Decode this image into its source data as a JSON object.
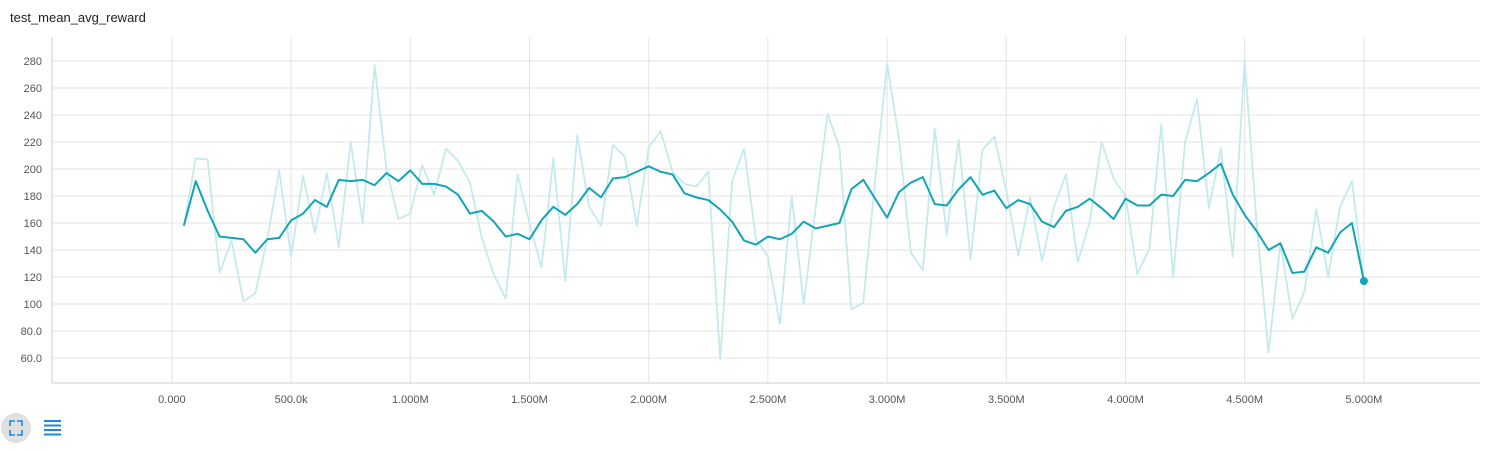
{
  "chart_data": {
    "type": "line",
    "title": "test_mean_avg_reward",
    "x": [
      50000,
      100000,
      150000,
      200000,
      250000,
      300000,
      350000,
      400000,
      450000,
      500000,
      550000,
      600000,
      650000,
      700000,
      750000,
      800000,
      850000,
      900000,
      950000,
      1000000,
      1050000,
      1100000,
      1150000,
      1200000,
      1250000,
      1300000,
      1350000,
      1400000,
      1450000,
      1500000,
      1550000,
      1600000,
      1650000,
      1700000,
      1750000,
      1800000,
      1850000,
      1900000,
      1950000,
      2000000,
      2050000,
      2100000,
      2150000,
      2200000,
      2250000,
      2300000,
      2350000,
      2400000,
      2450000,
      2500000,
      2550000,
      2600000,
      2650000,
      2700000,
      2750000,
      2800000,
      2850000,
      2900000,
      2950000,
      3000000,
      3050000,
      3100000,
      3150000,
      3200000,
      3250000,
      3300000,
      3350000,
      3400000,
      3450000,
      3500000,
      3550000,
      3600000,
      3650000,
      3700000,
      3750000,
      3800000,
      3850000,
      3900000,
      3950000,
      4000000,
      4050000,
      4100000,
      4150000,
      4200000,
      4250000,
      4300000,
      4350000,
      4400000,
      4450000,
      4500000,
      4550000,
      4600000,
      4650000,
      4700000,
      4750000,
      4800000,
      4850000,
      4900000,
      4950000,
      5000000
    ],
    "series": [
      {
        "color": "#c5eaee",
        "values": [
          158,
          208,
          207,
          123,
          147,
          102,
          108,
          148,
          199,
          135,
          195,
          153,
          197,
          142,
          220,
          160,
          277,
          200,
          163,
          167,
          203,
          181,
          215,
          206,
          190,
          149,
          122,
          104,
          196,
          160,
          127,
          208,
          117,
          225,
          172,
          158,
          218,
          209,
          158,
          216,
          228,
          198,
          189,
          187,
          198,
          59,
          191,
          215,
          148,
          135,
          85,
          180,
          100,
          171,
          241,
          216,
          96,
          101,
          192,
          278,
          222,
          138,
          125,
          230,
          151,
          222,
          133,
          214,
          224,
          184,
          136,
          179,
          132,
          172,
          196,
          131,
          161,
          220,
          193,
          180,
          122,
          141,
          233,
          120,
          220,
          252,
          171,
          215,
          135,
          280,
          160,
          64,
          145,
          89,
          109,
          170,
          120,
          172,
          191,
          117
        ]
      },
      {
        "color": "#12a5b5",
        "values": [
          158,
          191,
          169,
          150,
          149,
          148,
          138,
          148,
          149,
          162,
          167,
          177,
          172,
          192,
          191,
          192,
          188,
          197,
          191,
          199,
          189,
          189,
          187,
          181,
          167,
          169,
          161,
          150,
          152,
          148,
          162,
          172,
          166,
          174,
          186,
          179,
          193,
          194,
          198,
          202,
          198,
          196,
          182,
          179,
          177,
          170,
          161,
          147,
          144,
          150,
          148,
          152,
          161,
          156,
          158,
          160,
          185,
          192,
          178,
          164,
          183,
          190,
          194,
          174,
          173,
          185,
          194,
          181,
          184,
          171,
          177,
          174,
          161,
          157,
          169,
          172,
          178,
          171,
          163,
          178,
          173,
          173,
          181,
          180,
          192,
          191,
          197,
          204,
          181,
          166,
          154,
          140,
          145,
          123,
          124,
          142,
          138,
          153,
          160,
          117
        ]
      }
    ],
    "xlim": [
      -503000,
      5487000
    ],
    "ylim": [
      41.5,
      297.8
    ],
    "xticks": [
      {
        "value": 0,
        "label": "0.000"
      },
      {
        "value": 500000,
        "label": "500.0k"
      },
      {
        "value": 1000000,
        "label": "1.000M"
      },
      {
        "value": 1500000,
        "label": "1.500M"
      },
      {
        "value": 2000000,
        "label": "2.000M"
      },
      {
        "value": 2500000,
        "label": "2.500M"
      },
      {
        "value": 3000000,
        "label": "3.000M"
      },
      {
        "value": 3500000,
        "label": "3.500M"
      },
      {
        "value": 4000000,
        "label": "4.000M"
      },
      {
        "value": 4500000,
        "label": "4.500M"
      },
      {
        "value": 5000000,
        "label": "5.000M"
      }
    ],
    "yticks": [
      {
        "value": 60,
        "label": "60.0"
      },
      {
        "value": 80,
        "label": "80.0"
      },
      100,
      120,
      140,
      160,
      180,
      200,
      220,
      240,
      260,
      280
    ],
    "grid": true
  }
}
